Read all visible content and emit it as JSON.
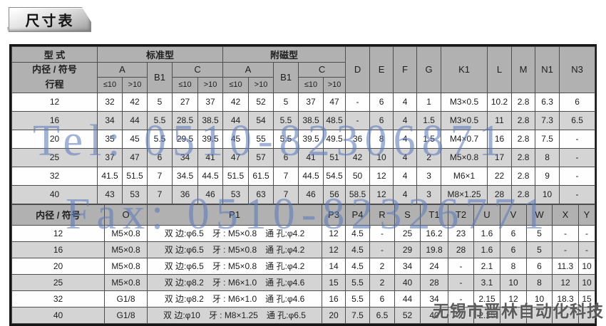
{
  "title": "尺寸表",
  "watermarks": {
    "tel": "Tel: 0510-82306871",
    "fax": "Fax: 0510-82326771",
    "company": "无锡市晋林自动化科技"
  },
  "table1": {
    "header": {
      "model": "型 式",
      "bore": "内径 / 符号",
      "stroke": "行程",
      "standard": "标准型",
      "magnet": "附磁型",
      "a": "A",
      "b1": "B1",
      "c": "C",
      "le": "≤10",
      "gt": ">10",
      "letters": [
        "D",
        "E",
        "F",
        "G",
        "K1",
        "L",
        "M",
        "N1",
        "N3"
      ]
    },
    "rows": [
      {
        "cells": [
          "12",
          "32",
          "42",
          "5",
          "27",
          "37",
          "42",
          "52",
          "5",
          "37",
          "47",
          "-",
          "6",
          "4",
          "1",
          "M3×0.5",
          "10.2",
          "2.8",
          "6.3",
          "6"
        ]
      },
      {
        "cells": [
          "16",
          "34",
          "44",
          "5.5",
          "28.5",
          "38.5",
          "44",
          "54",
          "5.5",
          "38.5",
          "48.5",
          "-",
          "6",
          "4",
          "1.5",
          "M3×0.5",
          "11",
          "2.8",
          "7.3",
          "6.5"
        ]
      },
      {
        "cells": [
          "20",
          "35",
          "45",
          "5.5",
          "29.5",
          "39.5",
          "45",
          "55",
          "5.5",
          "39.5",
          "49.5",
          "36",
          "8",
          "4",
          "1.5",
          "M4×0.7",
          "16",
          "2.8",
          "7.5",
          "-"
        ]
      },
      {
        "cells": [
          "25",
          "37",
          "47",
          "6",
          "34",
          "41",
          "47",
          "57",
          "6",
          "41",
          "51",
          "42",
          "10",
          "4",
          "2",
          "M5×0.8",
          "17",
          "2.8",
          "8",
          "-"
        ]
      },
      {
        "cells": [
          "32",
          "41.5",
          "51.5",
          "7",
          "34.5",
          "44.5",
          "51.5",
          "61.5",
          "7",
          "44.5",
          "54.5",
          "50",
          "12",
          "4",
          "3",
          "M6×1",
          "22",
          "2.8",
          "9",
          "-"
        ]
      },
      {
        "cells": [
          "40",
          "43",
          "53",
          "7",
          "36",
          "46",
          "53",
          "63",
          "7",
          "46",
          "56",
          "58.5",
          "12",
          "4",
          "3",
          "M8×1.25",
          "28",
          "2.8",
          "10",
          "-"
        ]
      }
    ]
  },
  "table2": {
    "header": [
      "内径 / 符号",
      "O",
      "P1",
      "P3",
      "P4",
      "R",
      "S",
      "T1",
      "T2",
      "U",
      "V",
      "W",
      "X",
      "Y"
    ],
    "rows": [
      {
        "cells": [
          "12",
          "M5×0.8",
          "双 边:φ6.5　牙 : M5×0.8　通 孔:φ4.2",
          "12",
          "4.5",
          "-",
          "25",
          "16.2",
          "23",
          "1.6",
          "6",
          "5",
          "-",
          "-"
        ]
      },
      {
        "cells": [
          "16",
          "M5×0.8",
          "双 边:φ6.5　牙 : M5×0.8　通 孔:φ4.2",
          "12",
          "4.5",
          "-",
          "29",
          "19.8",
          "28",
          "1.6",
          "6",
          "5",
          "-",
          "-"
        ]
      },
      {
        "cells": [
          "20",
          "M5×0.8",
          "双 边:φ6.5　牙 : M5×0.8　通 孔:φ4.2",
          "14",
          "4.5",
          "2",
          "34",
          "24",
          "-",
          "2.1",
          "8",
          "6",
          "11.3",
          "10"
        ]
      },
      {
        "cells": [
          "25",
          "M5×0.8",
          "双 边:φ8.2　牙 : M6×1.0　通 孔:φ4.6",
          "15",
          "5.5",
          "2",
          "40",
          "28",
          "-",
          "3.1",
          "10",
          "8",
          "12",
          "10"
        ]
      },
      {
        "cells": [
          "32",
          "G1/8",
          "双 边:φ8.2　牙 : M6×1.0　通 孔:φ4.6",
          "16",
          "5.5",
          "6",
          "44",
          "34",
          "-",
          "2.15",
          "12",
          "10",
          "18.3",
          "15"
        ]
      },
      {
        "cells": [
          "40",
          "G1/8",
          "双 边:φ10　牙 : M8×1.25　通 孔:φ6.5",
          "20",
          "7.5",
          "6.5",
          "52",
          "40",
          "-",
          "2.25",
          "",
          "",
          "",
          ""
        ]
      }
    ]
  }
}
